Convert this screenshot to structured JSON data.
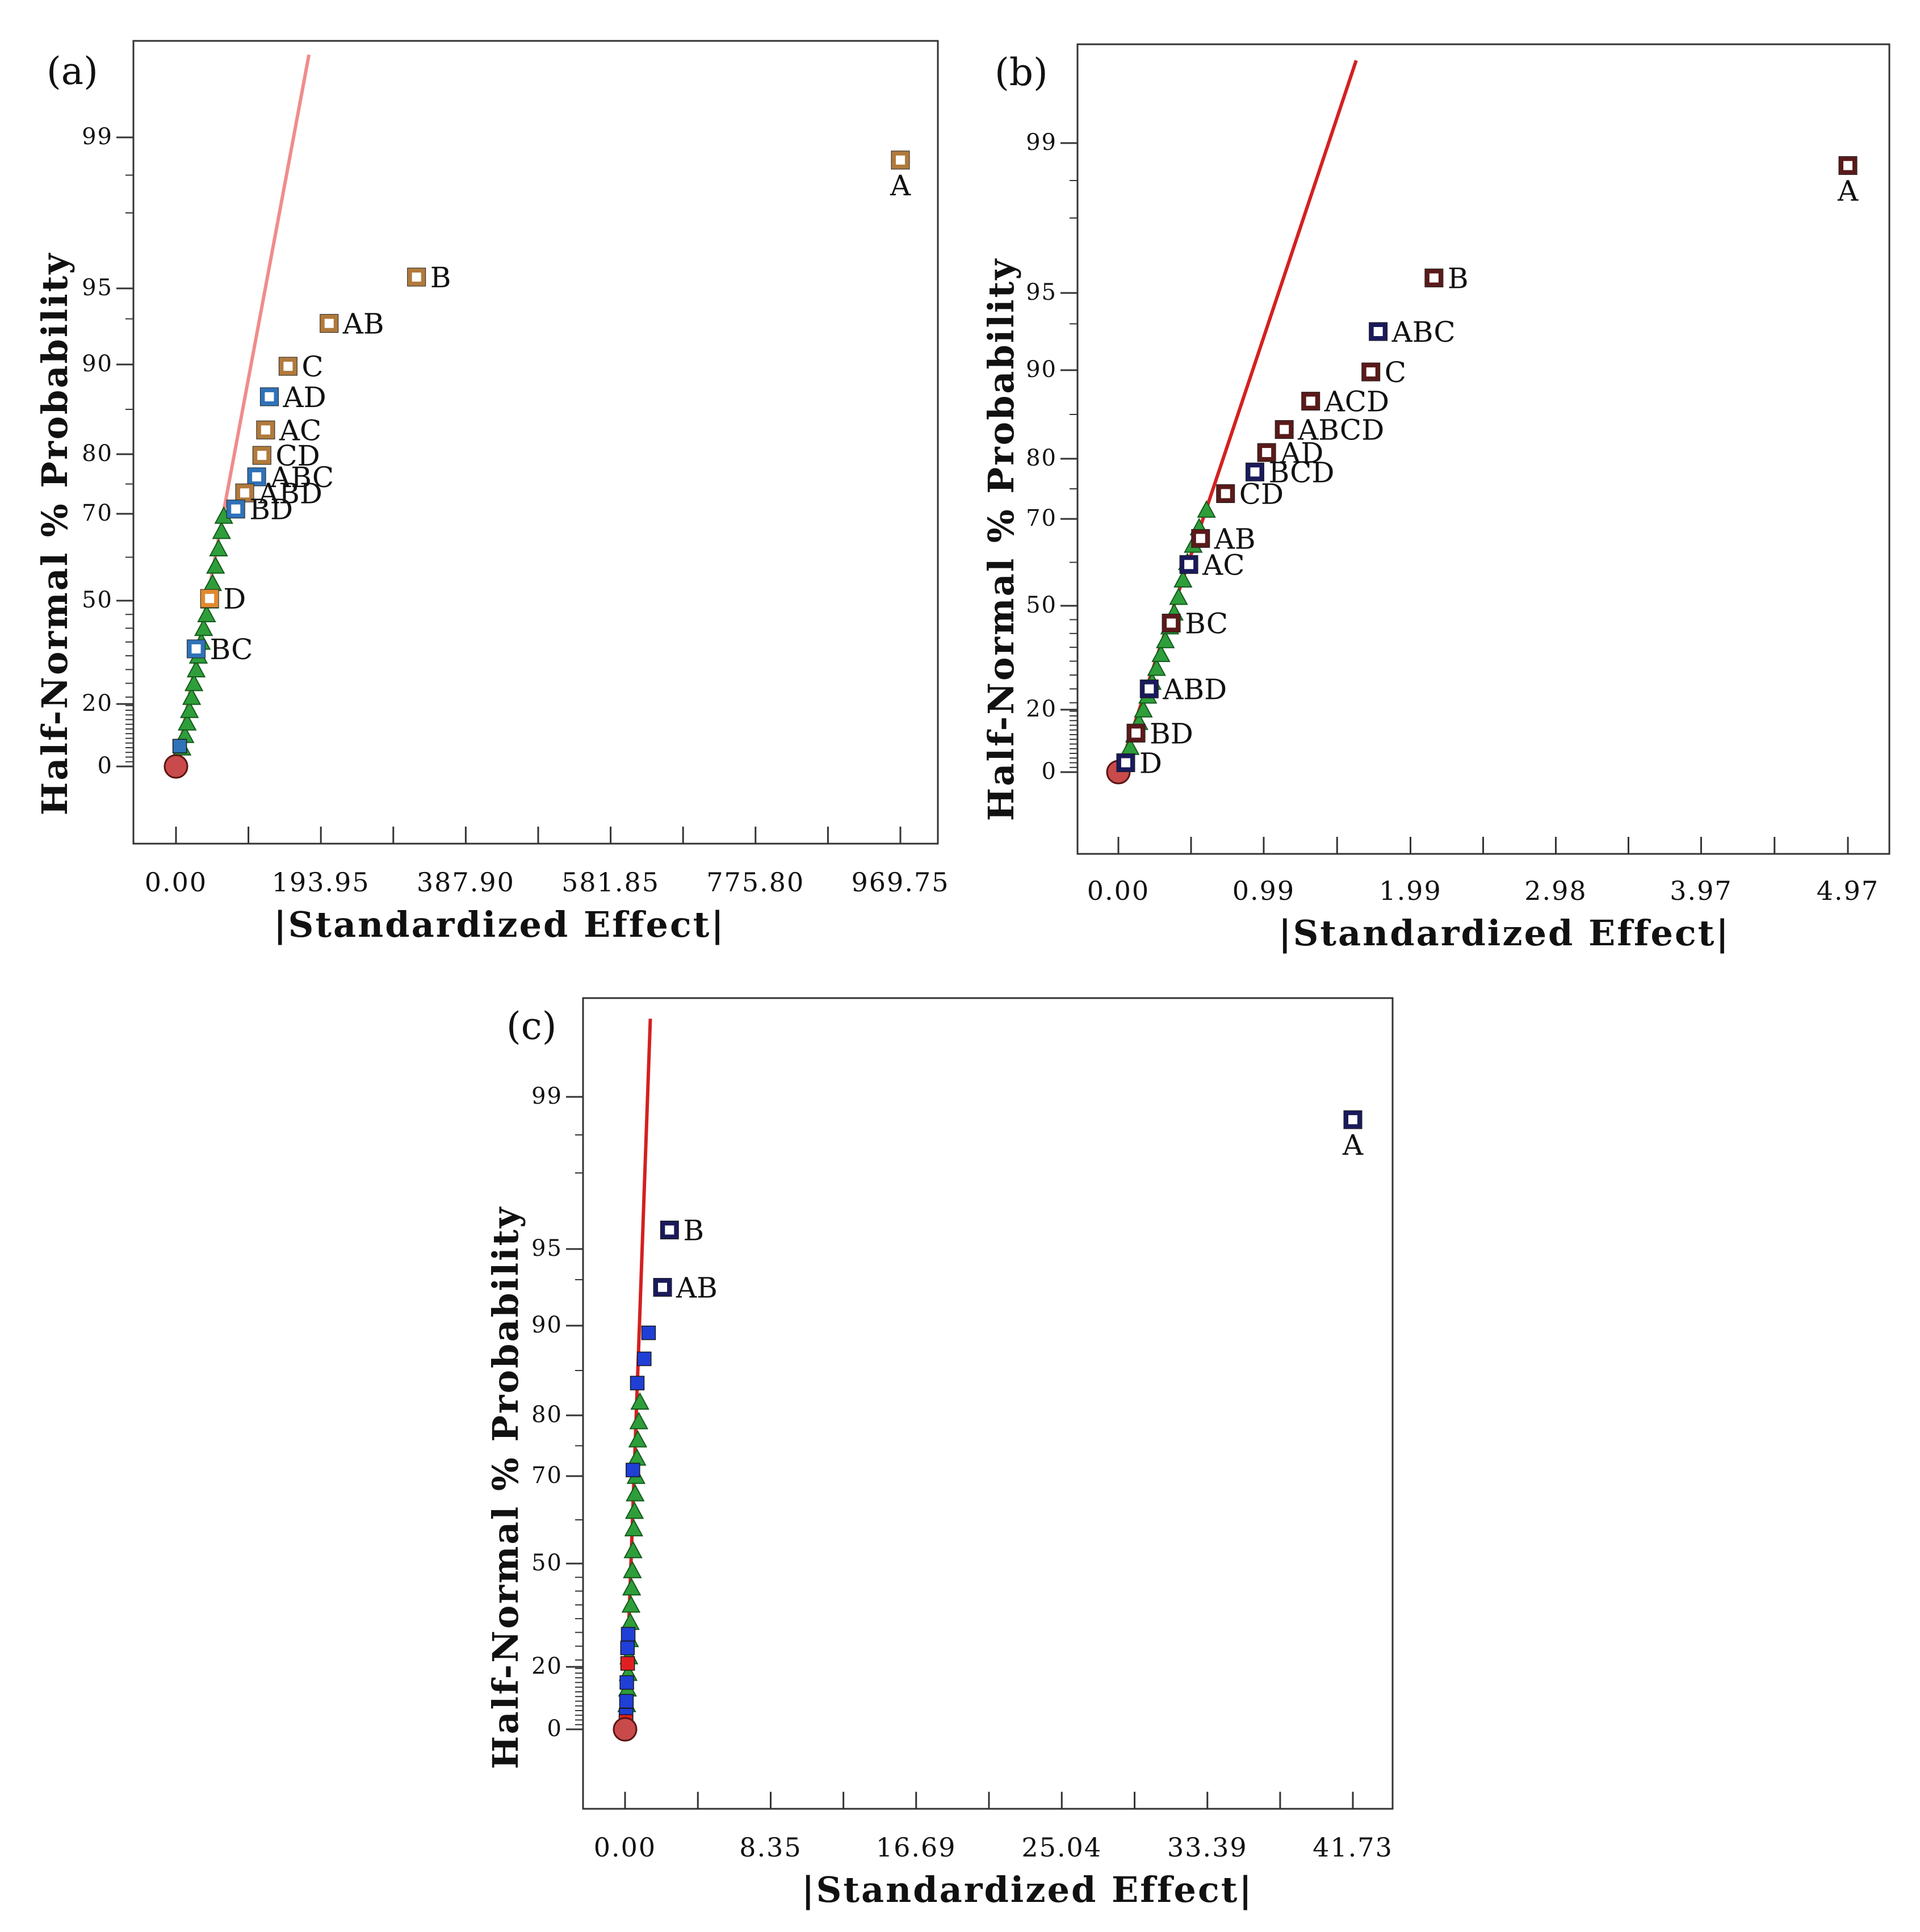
{
  "figure": {
    "background": "#ffffff",
    "axis_color": "#333333"
  },
  "chart_data": [
    {
      "panel": "(a)",
      "type": "scatter",
      "title": "",
      "xlabel": "|Standardized Effect|",
      "ylabel": "Half-Normal % Probability",
      "xlim": [
        -20,
        1010
      ],
      "xticks": [
        0,
        193.95,
        387.9,
        581.85,
        775.8,
        969.75
      ],
      "xtick_labels": [
        "0.00",
        "193.95",
        "387.90",
        "581.85",
        "775.80",
        "969.75"
      ],
      "yticks": [
        0,
        20,
        50,
        70,
        80,
        90,
        95,
        99
      ],
      "ytick_labels": [
        "0",
        "20",
        "50",
        "70",
        "80",
        "90",
        "95",
        "99"
      ],
      "reference_line": {
        "color": "#f08c8c",
        "from": {
          "x": 0,
          "p": 0
        },
        "to": {
          "x": 178,
          "p": 99.8
        }
      },
      "marker_color": "#b07a3c",
      "marker_color_alt": "#2f72b8",
      "labeled_effects": [
        {
          "term": "A",
          "effect": 969.75,
          "p": 98.4,
          "color": "#b07a3c"
        },
        {
          "term": "B",
          "effect": 322,
          "p": 95.3,
          "color": "#b07a3c"
        },
        {
          "term": "AB",
          "effect": 205,
          "p": 92.7,
          "color": "#b07a3c"
        },
        {
          "term": "C",
          "effect": 150,
          "p": 89.8,
          "color": "#b07a3c"
        },
        {
          "term": "AD",
          "effect": 125,
          "p": 86.4,
          "color": "#2f72b8"
        },
        {
          "term": "AC",
          "effect": 120,
          "p": 82.7,
          "color": "#b07a3c"
        },
        {
          "term": "CD",
          "effect": 115,
          "p": 79.8,
          "color": "#b07a3c"
        },
        {
          "term": "ABC",
          "effect": 108,
          "p": 76.2,
          "color": "#2f72b8"
        },
        {
          "term": "ABD",
          "effect": 92,
          "p": 73.5,
          "color": "#b07a3c"
        },
        {
          "term": "BD",
          "effect": 80,
          "p": 70.8,
          "color": "#2f72b8"
        },
        {
          "term": "D",
          "effect": 45,
          "p": 50.5,
          "color": "#e08a30"
        },
        {
          "term": "BC",
          "effect": 27,
          "p": 36.0,
          "color": "#2f72b8"
        }
      ],
      "error_estimates": [
        {
          "effect": 3,
          "p": 2.2
        },
        {
          "effect": 8,
          "p": 6
        },
        {
          "effect": 12,
          "p": 10
        },
        {
          "effect": 15,
          "p": 14
        },
        {
          "effect": 18,
          "p": 18
        },
        {
          "effect": 21,
          "p": 22
        },
        {
          "effect": 24,
          "p": 26
        },
        {
          "effect": 27,
          "p": 30
        },
        {
          "effect": 30,
          "p": 34
        },
        {
          "effect": 34,
          "p": 38
        },
        {
          "effect": 37,
          "p": 42
        },
        {
          "effect": 41,
          "p": 46
        },
        {
          "effect": 45,
          "p": 50
        },
        {
          "effect": 49,
          "p": 54
        },
        {
          "effect": 53,
          "p": 58
        },
        {
          "effect": 57,
          "p": 62
        },
        {
          "effect": 61,
          "p": 66
        },
        {
          "effect": 64,
          "p": 69.5
        }
      ],
      "extra_markers": [
        {
          "effect": 5,
          "p": 6.5,
          "color": "#2f72b8",
          "kind": "filled-square"
        }
      ],
      "origin_marker": {
        "effect": 0,
        "p": 0
      }
    },
    {
      "panel": "(b)",
      "type": "scatter",
      "title": "",
      "xlabel": "|Standardized Effect|",
      "ylabel": "Half-Normal % Probability",
      "xlim": [
        -0.28,
        5.24
      ],
      "xticks": [
        0,
        0.99,
        1.99,
        2.98,
        3.97,
        4.97
      ],
      "xtick_labels": [
        "0.00",
        "0.99",
        "1.99",
        "2.98",
        "3.97",
        "4.97"
      ],
      "yticks": [
        0,
        20,
        50,
        70,
        80,
        90,
        95,
        99
      ],
      "ytick_labels": [
        "0",
        "20",
        "50",
        "70",
        "80",
        "90",
        "95",
        "99"
      ],
      "reference_line": {
        "color": "#d42020",
        "from": {
          "x": 0,
          "p": 0
        },
        "to": {
          "x": 1.62,
          "p": 99.8
        }
      },
      "marker_color": "#5a1a1a",
      "marker_color_alt": "#1a1a5a",
      "labeled_effects": [
        {
          "term": "A",
          "effect": 4.97,
          "p": 98.4,
          "color": "#5a1a1a"
        },
        {
          "term": "B",
          "effect": 2.15,
          "p": 95.4,
          "color": "#5a1a1a"
        },
        {
          "term": "ABC",
          "effect": 1.77,
          "p": 92.5,
          "color": "#1a1a5a"
        },
        {
          "term": "C",
          "effect": 1.72,
          "p": 89.8,
          "color": "#5a1a1a"
        },
        {
          "term": "ACD",
          "effect": 1.31,
          "p": 86.5,
          "color": "#5a1a1a"
        },
        {
          "term": "ABCD",
          "effect": 1.13,
          "p": 83.3,
          "color": "#5a1a1a"
        },
        {
          "term": "AD",
          "effect": 1.01,
          "p": 80.7,
          "color": "#5a1a1a"
        },
        {
          "term": "BCD",
          "effect": 0.93,
          "p": 77.8,
          "color": "#1a1a5a"
        },
        {
          "term": "CD",
          "effect": 0.73,
          "p": 74.2,
          "color": "#5a1a1a"
        },
        {
          "term": "AB",
          "effect": 0.56,
          "p": 65.5,
          "color": "#5a1a1a"
        },
        {
          "term": "AC",
          "effect": 0.48,
          "p": 59.5,
          "color": "#1a1a5a"
        },
        {
          "term": "BC",
          "effect": 0.36,
          "p": 45.0,
          "color": "#5a1a1a"
        },
        {
          "term": "ABD",
          "effect": 0.21,
          "p": 26.0,
          "color": "#1a1a5a"
        },
        {
          "term": "BD",
          "effect": 0.12,
          "p": 12.5,
          "color": "#5a1a1a"
        },
        {
          "term": "D",
          "effect": 0.05,
          "p": 3.0,
          "color": "#1a1a5a"
        }
      ],
      "error_estimates": [
        {
          "effect": 0.04,
          "p": 4
        },
        {
          "effect": 0.08,
          "p": 8
        },
        {
          "effect": 0.11,
          "p": 12
        },
        {
          "effect": 0.14,
          "p": 16
        },
        {
          "effect": 0.17,
          "p": 20
        },
        {
          "effect": 0.2,
          "p": 24
        },
        {
          "effect": 0.23,
          "p": 28
        },
        {
          "effect": 0.26,
          "p": 32
        },
        {
          "effect": 0.29,
          "p": 36
        },
        {
          "effect": 0.32,
          "p": 40
        },
        {
          "effect": 0.35,
          "p": 44
        },
        {
          "effect": 0.38,
          "p": 48
        },
        {
          "effect": 0.41,
          "p": 52
        },
        {
          "effect": 0.44,
          "p": 56
        },
        {
          "effect": 0.47,
          "p": 60
        },
        {
          "effect": 0.51,
          "p": 64
        },
        {
          "effect": 0.55,
          "p": 68
        },
        {
          "effect": 0.6,
          "p": 71.5
        }
      ],
      "extra_markers": [],
      "origin_marker": {
        "effect": 0,
        "p": 0
      }
    },
    {
      "panel": "(c)",
      "type": "scatter",
      "title": "",
      "xlabel": "|Standardized Effect|",
      "ylabel": "Half-Normal % Probability",
      "xlim": [
        -2.35,
        44.0
      ],
      "xticks": [
        0,
        8.35,
        16.69,
        25.04,
        33.39,
        41.73
      ],
      "xtick_labels": [
        "0.00",
        "8.35",
        "16.69",
        "25.04",
        "33.39",
        "41.73"
      ],
      "yticks": [
        0,
        20,
        50,
        70,
        80,
        90,
        95,
        99
      ],
      "ytick_labels": [
        "0",
        "20",
        "50",
        "70",
        "80",
        "90",
        "95",
        "99"
      ],
      "reference_line": {
        "color": "#d42020",
        "from": {
          "x": 0,
          "p": 0
        },
        "to": {
          "x": 1.45,
          "p": 99.8
        }
      },
      "marker_color": "#1a1a5a",
      "marker_color_alt": "#1f3fd6",
      "labeled_effects": [
        {
          "term": "A",
          "effect": 41.73,
          "p": 98.4,
          "color": "#1a1a5a"
        },
        {
          "term": "B",
          "effect": 2.55,
          "p": 95.5,
          "color": "#1a1a5a"
        },
        {
          "term": "AB",
          "effect": 2.15,
          "p": 92.5,
          "color": "#1a1a5a"
        }
      ],
      "error_estimates": [
        {
          "effect": 0.06,
          "p": 3
        },
        {
          "effect": 0.1,
          "p": 8
        },
        {
          "effect": 0.14,
          "p": 13
        },
        {
          "effect": 0.18,
          "p": 18
        },
        {
          "effect": 0.22,
          "p": 23
        },
        {
          "effect": 0.26,
          "p": 28
        },
        {
          "effect": 0.3,
          "p": 33
        },
        {
          "effect": 0.34,
          "p": 38
        },
        {
          "effect": 0.38,
          "p": 43
        },
        {
          "effect": 0.42,
          "p": 48
        },
        {
          "effect": 0.46,
          "p": 53
        },
        {
          "effect": 0.5,
          "p": 58
        },
        {
          "effect": 0.54,
          "p": 62
        },
        {
          "effect": 0.58,
          "p": 66
        },
        {
          "effect": 0.63,
          "p": 70
        },
        {
          "effect": 0.68,
          "p": 73
        },
        {
          "effect": 0.73,
          "p": 76
        },
        {
          "effect": 0.79,
          "p": 79
        },
        {
          "effect": 0.85,
          "p": 81.5
        }
      ],
      "extra_markers": [
        {
          "effect": 1.35,
          "p": 89.2,
          "color": "#1f3fd6",
          "kind": "filled-square"
        },
        {
          "effect": 1.1,
          "p": 86.3,
          "color": "#1f3fd6",
          "kind": "filled-square"
        },
        {
          "effect": 0.7,
          "p": 83.6,
          "color": "#1f3fd6",
          "kind": "filled-square"
        },
        {
          "effect": 0.45,
          "p": 71.0,
          "color": "#1f3fd6",
          "kind": "filled-square"
        },
        {
          "effect": 0.18,
          "p": 29.5,
          "color": "#1f3fd6",
          "kind": "filled-square"
        },
        {
          "effect": 0.14,
          "p": 25.5,
          "color": "#1f3fd6",
          "kind": "filled-square"
        },
        {
          "effect": 0.1,
          "p": 15.0,
          "color": "#1f3fd6",
          "kind": "filled-square"
        },
        {
          "effect": 0.08,
          "p": 9.0,
          "color": "#1f3fd6",
          "kind": "filled-square"
        },
        {
          "effect": 0.06,
          "p": 4.5,
          "color": "#1f3fd6",
          "kind": "filled-square"
        },
        {
          "effect": 0.15,
          "p": 21.0,
          "color": "#e02020",
          "kind": "filled-square"
        },
        {
          "effect": 0.05,
          "p": 2.5,
          "color": "#e02020",
          "kind": "filled-square"
        }
      ],
      "origin_marker": {
        "effect": 0,
        "p": 0
      }
    }
  ]
}
